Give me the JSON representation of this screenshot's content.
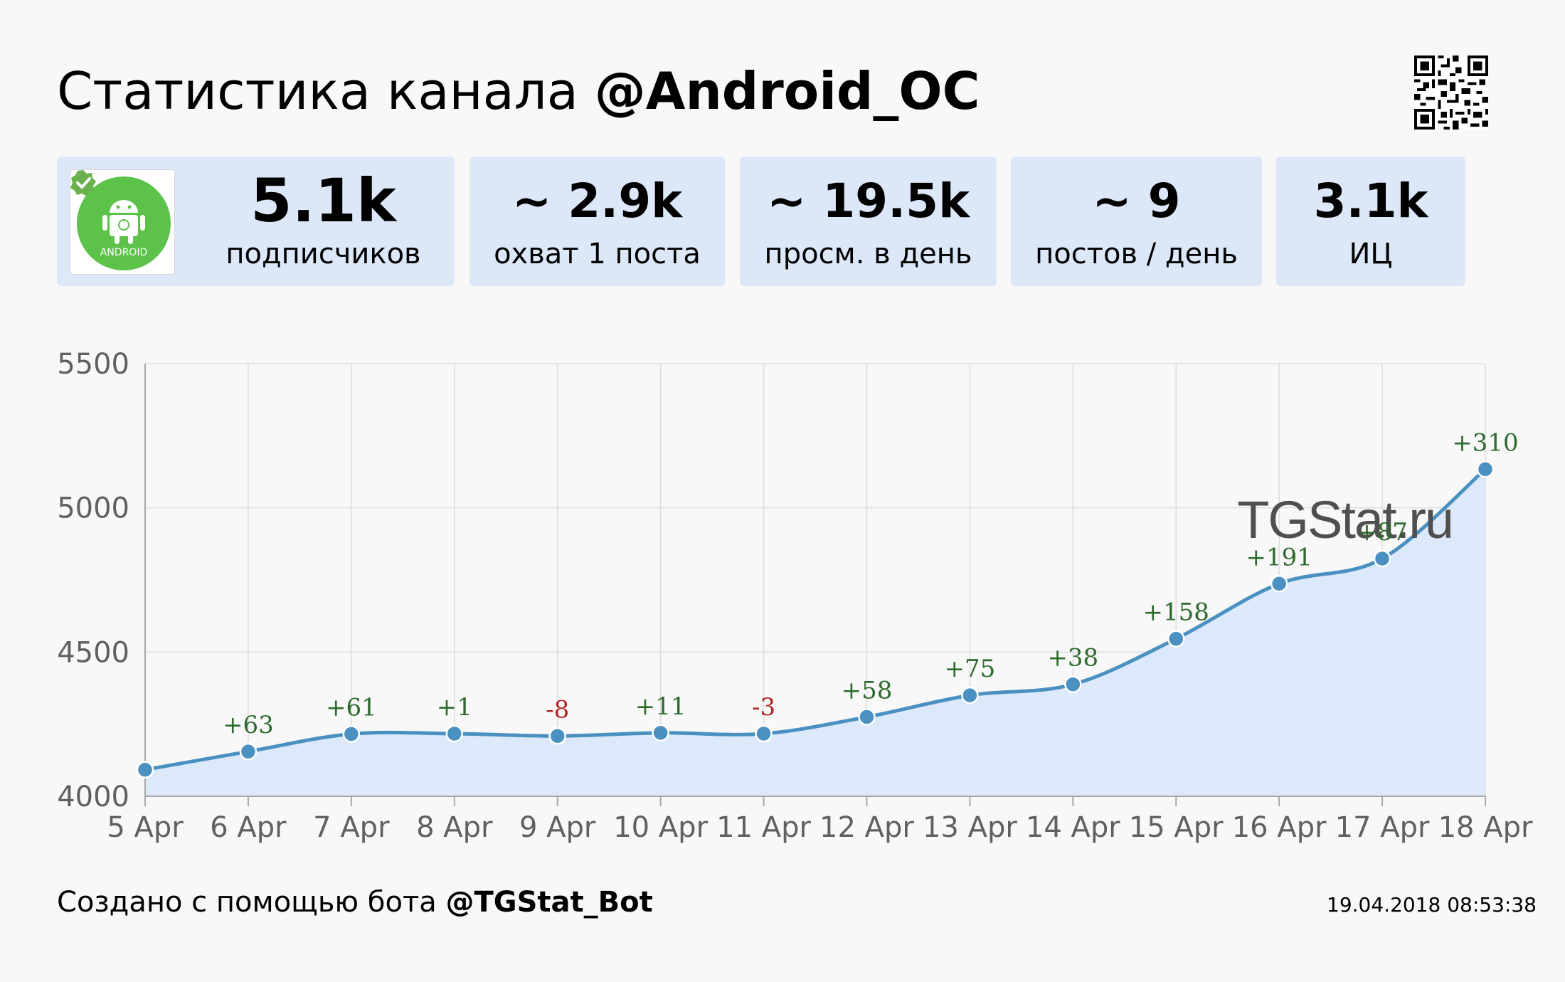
{
  "header": {
    "title_prefix": "Статистика канала ",
    "channel_handle": "@Android_OC"
  },
  "channel": {
    "avatar_icon": "android-logo-icon",
    "verified_icon": "verified-check-icon",
    "avatar_text": "ANDROID"
  },
  "stats": [
    {
      "value": "5.1k",
      "label": "подписчиков"
    },
    {
      "value": "~ 2.9k",
      "label": "охват 1 поста"
    },
    {
      "value": "~ 19.5k",
      "label": "просм. в день"
    },
    {
      "value": "~ 9",
      "label": "постов / день"
    },
    {
      "value": "3.1k",
      "label": "ИЦ"
    }
  ],
  "chart_data": {
    "type": "area",
    "x": [
      "5 Apr",
      "6 Apr",
      "7 Apr",
      "8 Apr",
      "9 Apr",
      "10 Apr",
      "11 Apr",
      "12 Apr",
      "13 Apr",
      "14 Apr",
      "15 Apr",
      "16 Apr",
      "17 Apr",
      "18 Apr"
    ],
    "values": [
      4092,
      4155,
      4216,
      4217,
      4209,
      4220,
      4217,
      4275,
      4350,
      4388,
      4546,
      4737,
      4824,
      5134
    ],
    "deltas": [
      "",
      "+63",
      "+61",
      "+1",
      "-8",
      "+11",
      "-3",
      "+58",
      "+75",
      "+38",
      "+158",
      "+191",
      "+87",
      "+310"
    ],
    "yticks": [
      "5500",
      "5000",
      "4500",
      "4000"
    ],
    "ylim": [
      4000,
      5500
    ],
    "grid": true,
    "watermark": "TGStat.ru",
    "colors": {
      "line": "#4a90c0",
      "fill": "#dce9fb",
      "positive": "#2d6a2d",
      "negative": "#b22222"
    }
  },
  "footer": {
    "prefix": "Создано с помощью бота ",
    "bot_handle": "@TGStat_Bot",
    "timestamp": "19.04.2018 08:53:38"
  },
  "icons": {
    "qr": "qr-code-icon"
  }
}
